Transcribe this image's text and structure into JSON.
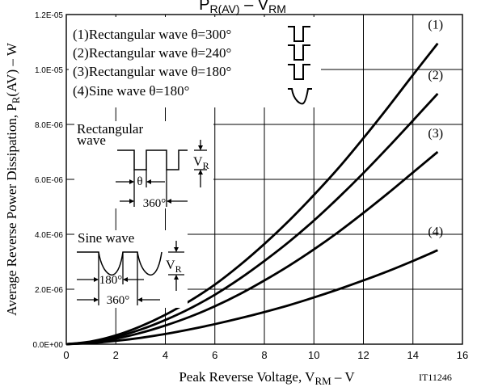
{
  "chart_data": {
    "type": "line",
    "title": "P",
    "title_sub": "R(AV)",
    "title_mid": " – V",
    "title_sub2": "RM",
    "xlabel_pre": "Peak Reverse Voltage, V",
    "xlabel_sub": "RM",
    "xlabel_post": " – V",
    "ylabel_pre": "Average Reverse Power Dissipation, P",
    "ylabel_sub": "R",
    "ylabel_post": "(AV) – W",
    "ref_code": "IT11246",
    "xlim": [
      0,
      16
    ],
    "ylim": [
      0,
      1.2e-05
    ],
    "x_ticks": [
      "0",
      "2",
      "4",
      "6",
      "8",
      "10",
      "12",
      "14",
      "16"
    ],
    "y_ticks": [
      "0.0E+00",
      "2.0E-06",
      "4.0E-06",
      "6.0E-06",
      "8.0E-06",
      "1.0E-05",
      "1.2E-05"
    ],
    "grid": true,
    "legend": [
      "(1)Rectangular wave θ=300°",
      "(2)Rectangular wave θ=240°",
      "(3)Rectangular wave θ=180°",
      "(4)Sine wave θ=180°"
    ],
    "series": [
      {
        "name": "(1)",
        "x": [
          0,
          1,
          2,
          3,
          4,
          5,
          6,
          7,
          8,
          9,
          10,
          11,
          12,
          13,
          14,
          15
        ],
        "values": [
          0,
          1e-07,
          3.2e-07,
          6.5e-07,
          1.07e-06,
          1.58e-06,
          2.17e-06,
          2.87e-06,
          3.65e-06,
          4.5e-06,
          5.43e-06,
          6.42e-06,
          7.5e-06,
          8.63e-06,
          9.8e-06,
          1.095e-05
        ]
      },
      {
        "name": "(2)",
        "x": [
          0,
          1,
          2,
          3,
          4,
          5,
          6,
          7,
          8,
          9,
          10,
          11,
          12,
          13,
          14,
          15
        ],
        "values": [
          0,
          8e-08,
          2.6e-07,
          5.3e-07,
          8.8e-07,
          1.3e-06,
          1.8e-06,
          2.38e-06,
          3.03e-06,
          3.73e-06,
          4.5e-06,
          5.34e-06,
          6.23e-06,
          7.17e-06,
          8.14e-06,
          9.12e-06
        ]
      },
      {
        "name": "(3)",
        "x": [
          0,
          1,
          2,
          3,
          4,
          5,
          6,
          7,
          8,
          9,
          10,
          11,
          12,
          13,
          14,
          15
        ],
        "values": [
          0,
          6e-08,
          2e-07,
          4.1e-07,
          6.8e-07,
          1e-06,
          1.38e-06,
          1.82e-06,
          2.32e-06,
          2.86e-06,
          3.45e-06,
          4.09e-06,
          4.78e-06,
          5.5e-06,
          6.25e-06,
          7e-06
        ]
      },
      {
        "name": "(4)",
        "x": [
          0,
          1,
          2,
          3,
          4,
          5,
          6,
          7,
          8,
          9,
          10,
          11,
          12,
          13,
          14,
          15
        ],
        "values": [
          0,
          4e-08,
          1.2e-07,
          2.3e-07,
          3.7e-07,
          5.4e-07,
          7.3e-07,
          9.4e-07,
          1.17e-06,
          1.42e-06,
          1.7e-06,
          2e-06,
          2.32e-06,
          2.66e-06,
          3.03e-06,
          3.42e-06
        ]
      }
    ],
    "inset_rect": {
      "title_line1": "Rectangular",
      "title_line2": "wave",
      "theta": "θ",
      "period": "360°",
      "amp": "V",
      "amp_sub": "R"
    },
    "inset_sine": {
      "title": "Sine wave",
      "half": "180°",
      "period": "360°",
      "amp": "V",
      "amp_sub": "R"
    }
  }
}
